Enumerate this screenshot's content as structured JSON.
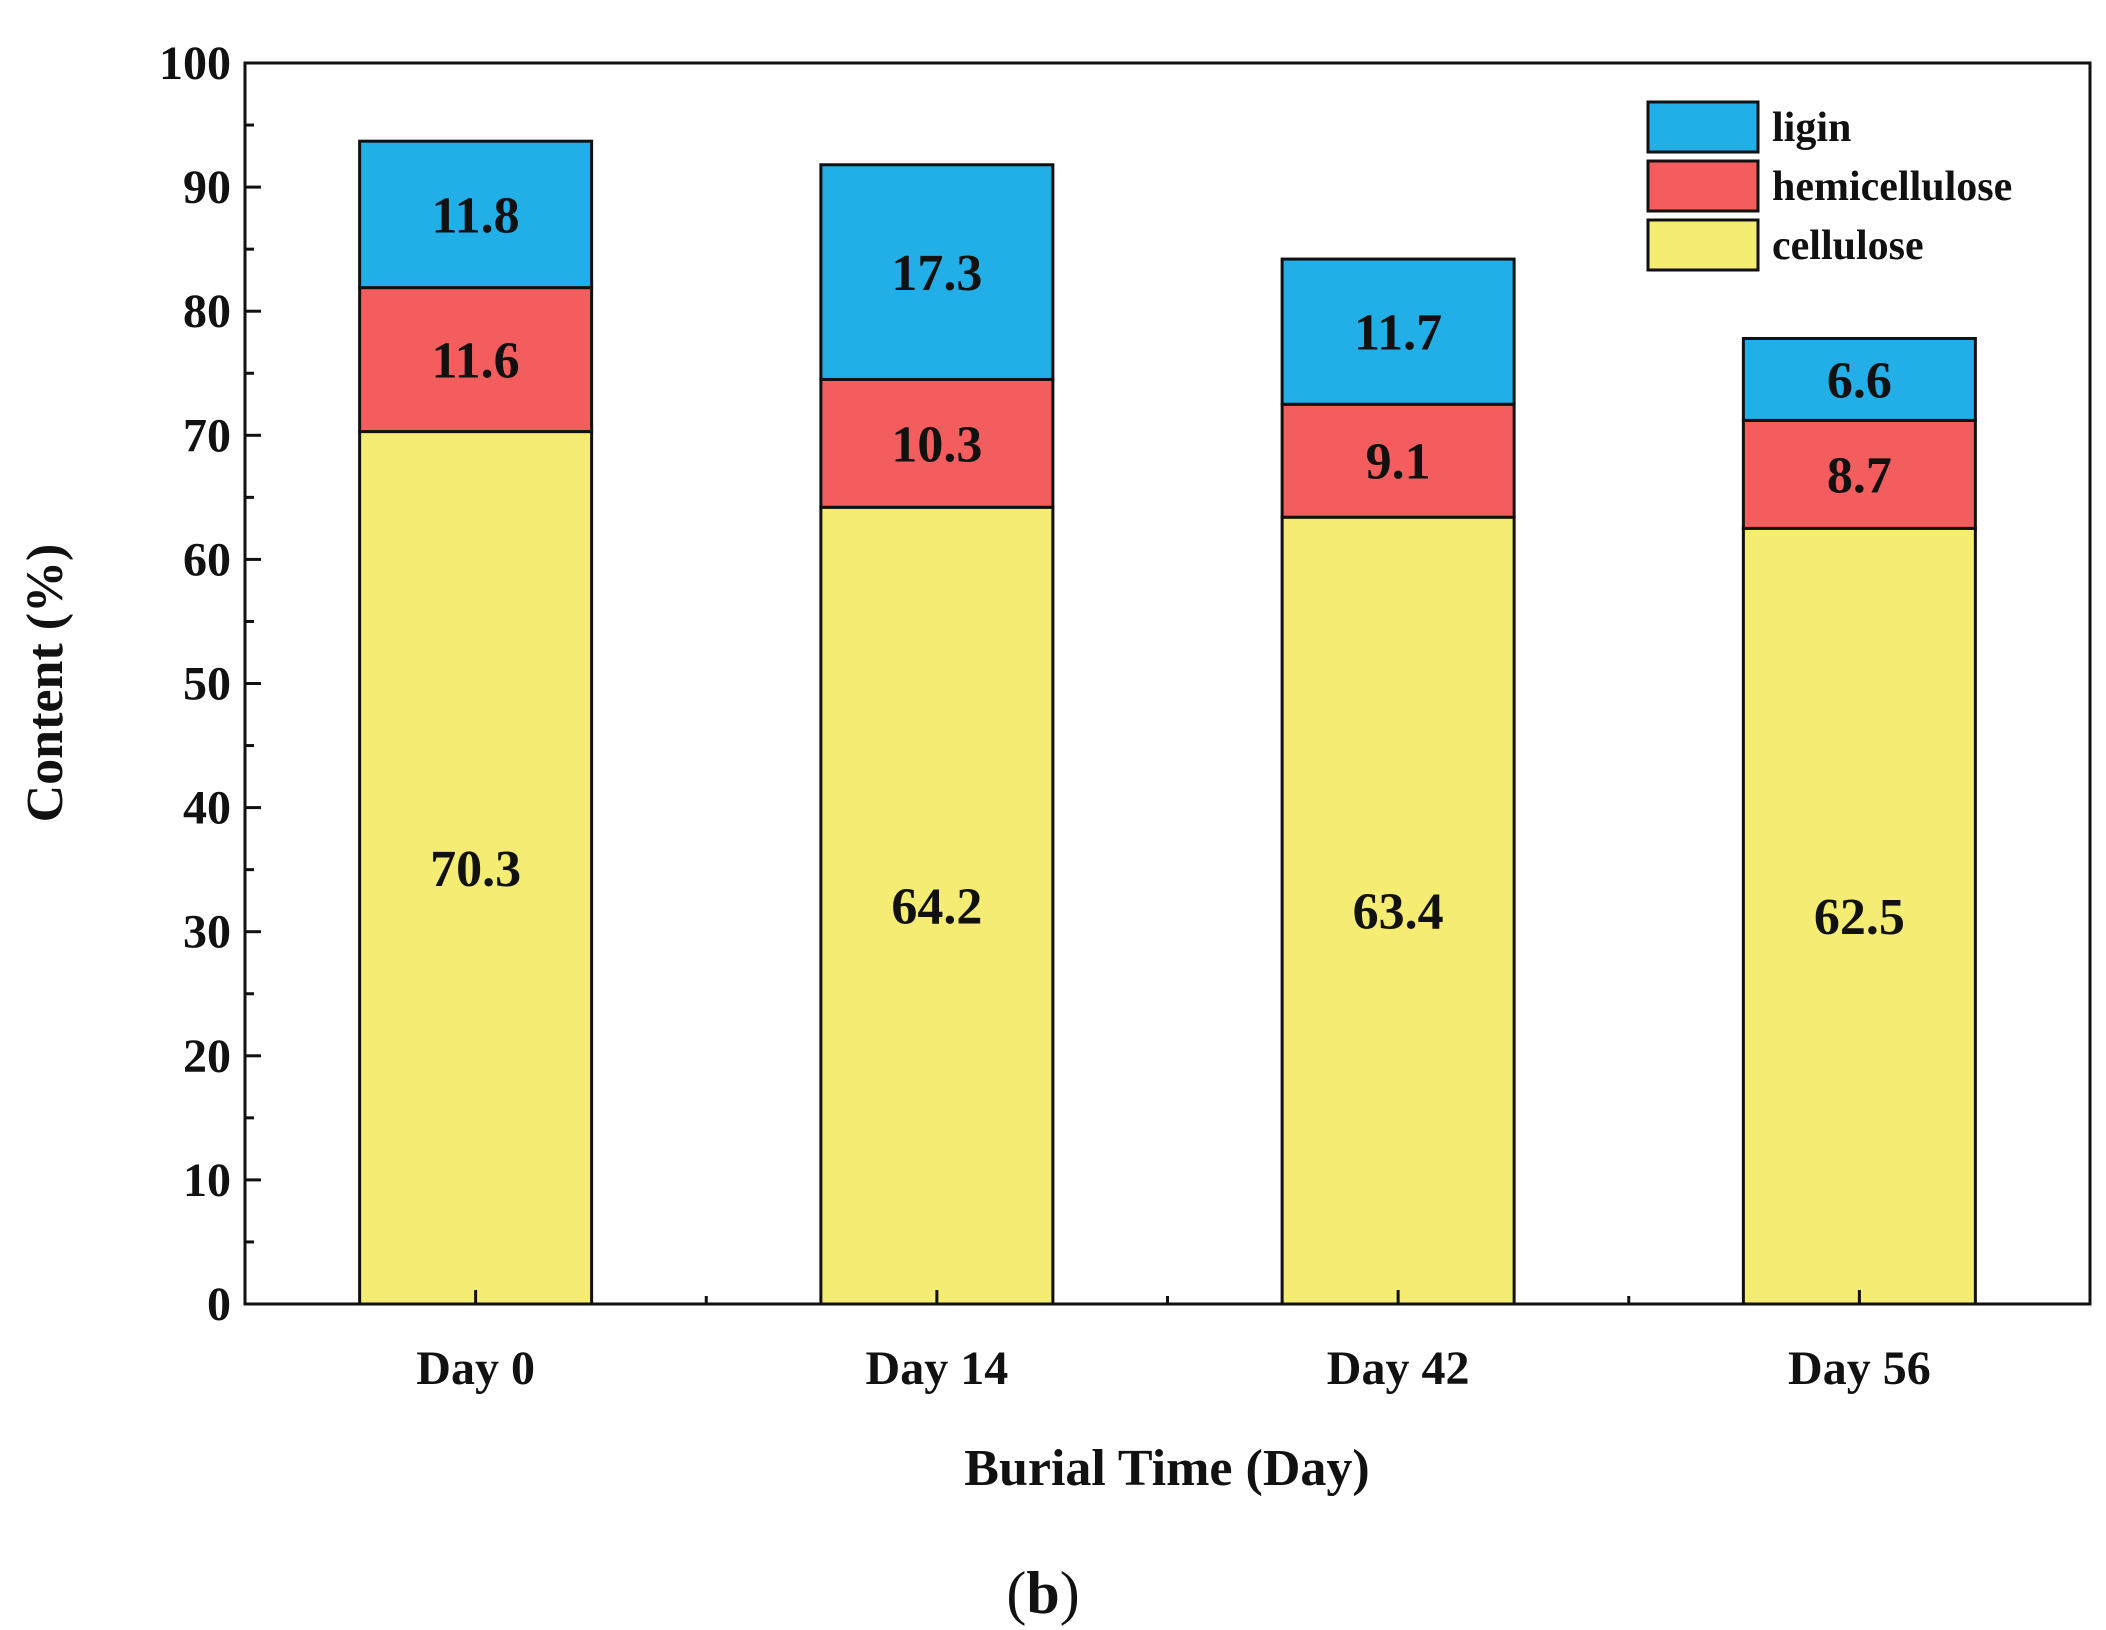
{
  "chart_data": {
    "type": "bar",
    "stacked": true,
    "title": "",
    "xlabel": "Burial Time (Day)",
    "ylabel": "Content (%)",
    "ylim": [
      0,
      100
    ],
    "yticks": [
      0,
      10,
      20,
      30,
      40,
      50,
      60,
      70,
      80,
      90,
      100
    ],
    "categories": [
      "Day 0",
      "Day 14",
      "Day 42",
      "Day 56"
    ],
    "series": [
      {
        "name": "cellulose",
        "color": "#f5ec73",
        "values": [
          70.3,
          64.2,
          63.4,
          62.5
        ],
        "labels": [
          "70.3",
          "64.2",
          "63.4",
          "62.5"
        ]
      },
      {
        "name": "hemicellulose",
        "color": "#f35d5d",
        "values": [
          11.6,
          10.3,
          9.1,
          8.7
        ],
        "labels": [
          "11.6",
          "10.3",
          "9.1",
          "8.7"
        ]
      },
      {
        "name": "ligin",
        "color": "#22aee6",
        "values": [
          11.8,
          17.3,
          11.7,
          6.6
        ],
        "labels": [
          "11.8",
          "17.3",
          "11.7",
          "6.6"
        ]
      }
    ],
    "legend": {
      "position": "top-right",
      "order": [
        "ligin",
        "hemicellulose",
        "cellulose"
      ]
    },
    "grid": false
  },
  "panel_label": {
    "open": "(",
    "letter": "b",
    "close": ")"
  }
}
